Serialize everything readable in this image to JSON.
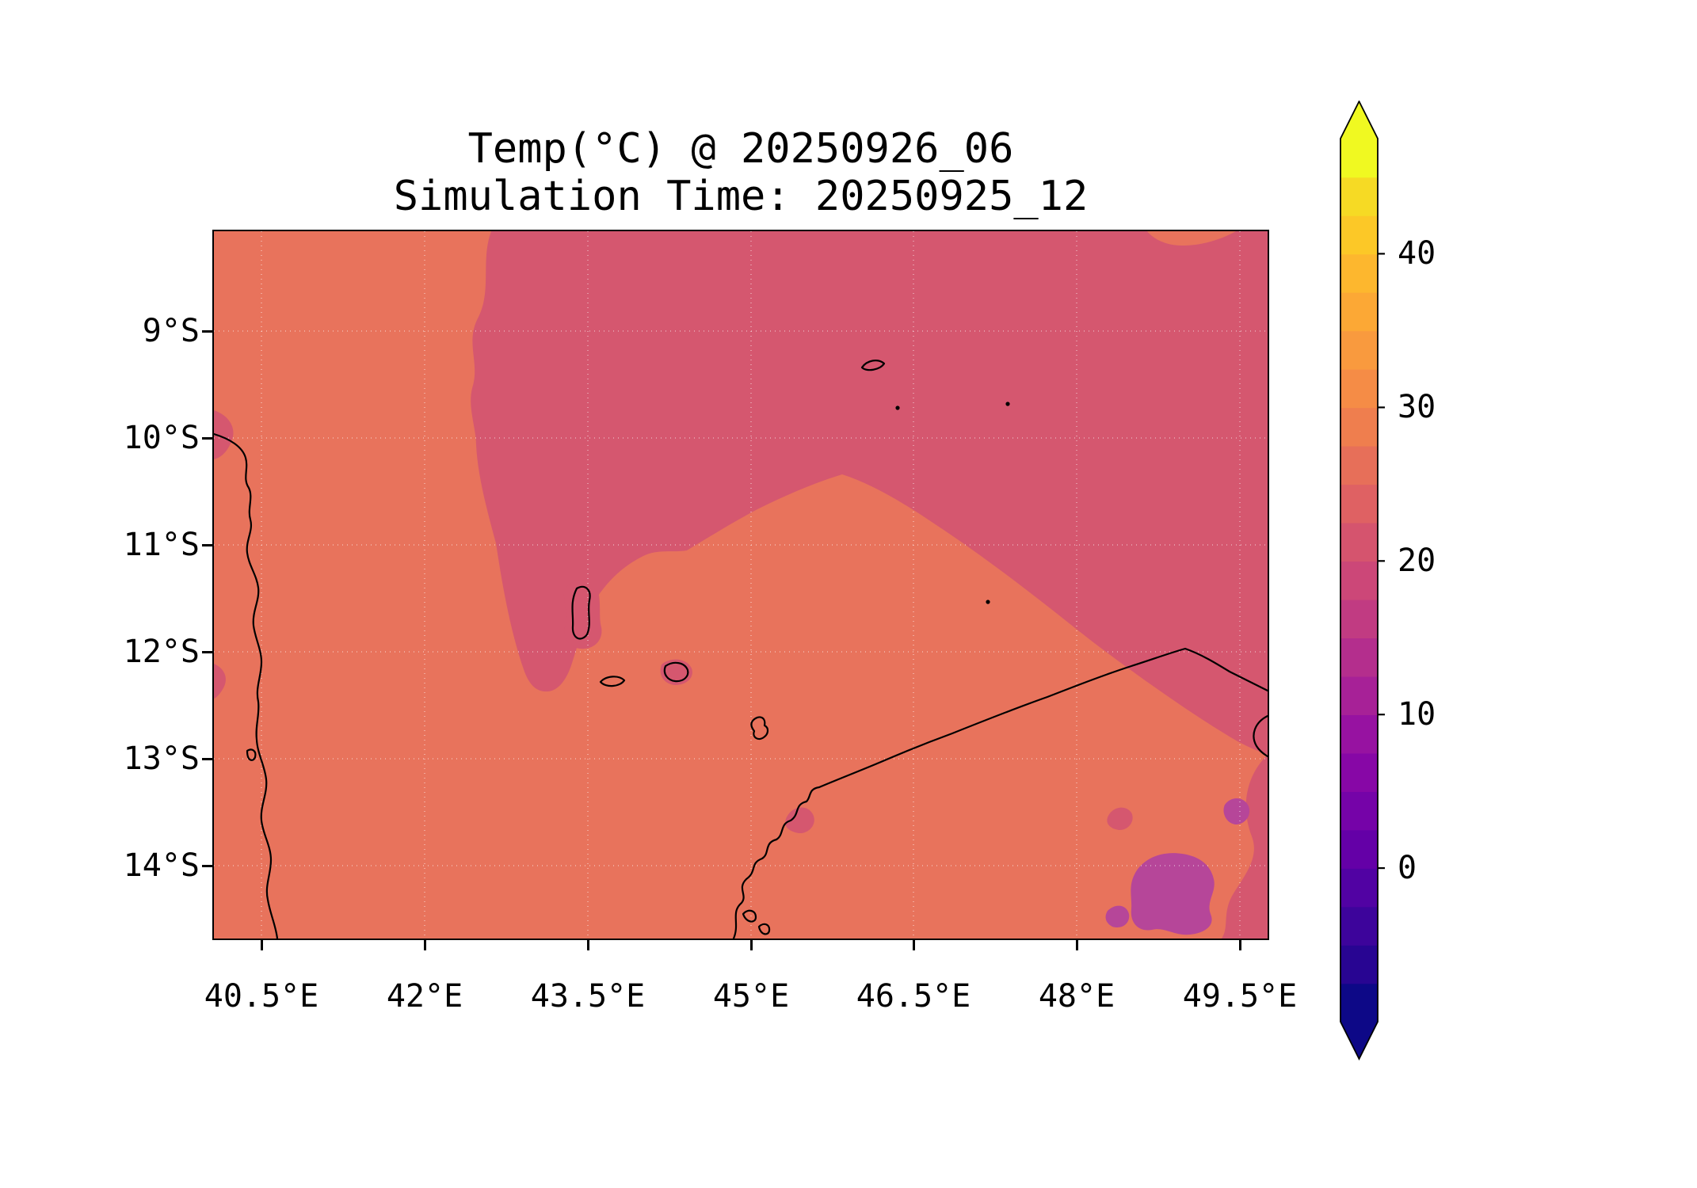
{
  "figure": {
    "title": "Temp(°C) @ 20250926_06",
    "subtitle": "Simulation Time: 20250925_12"
  },
  "axes": {
    "x_tick_labels": [
      "40.5°E",
      "42°E",
      "43.5°E",
      "45°E",
      "46.5°E",
      "48°E",
      "49.5°E"
    ],
    "y_tick_labels": [
      "9°S",
      "10°S",
      "11°S",
      "12°S",
      "13°S",
      "14°S"
    ]
  },
  "colorbar_labels": {
    "tick_labels_top_to_bottom": [
      "40",
      "30",
      "20",
      "10",
      "0"
    ]
  },
  "chart_data": {
    "type": "heatmap",
    "subtype": "filled-contour-map",
    "title": "Temp(°C) @ 20250926_06",
    "subtitle": "Simulation Time: 20250925_12",
    "variable": "Temperature",
    "units": "°C",
    "valid_time": "20250926_06",
    "simulation_time": "20250925_12",
    "x_ticks_deg_east": [
      40.5,
      42,
      43.5,
      45,
      46.5,
      48,
      49.5
    ],
    "y_ticks_deg_south": [
      9,
      10,
      11,
      12,
      13,
      14
    ],
    "lon_range_deg_east": [
      40.06,
      49.76
    ],
    "lat_range_deg_south": [
      8.07,
      14.68
    ],
    "graticule": "faint white dotted gridlines at each tick",
    "colors": {
      "sea_warm": "#e8735c",
      "cool": "#d5576f",
      "highland": "#b64699",
      "coastline": "#000000"
    },
    "regions": [
      {
        "name": "background-warm",
        "temp_c_band": [
          25,
          27.5
        ],
        "color_key": "sea_warm",
        "coverage": "most of the domain: Mozambique Channel, African coast, western and southern sea"
      },
      {
        "name": "northeast-cool-sector",
        "temp_c_band": [
          22.5,
          25
        ],
        "color_key": "cool",
        "coverage": "large region over the NE quadrant from ~44.5°E at the top edge to the right edge, with a lobe extending SW to ~43°E/12.3°S near the Comoros; also NE tip of Madagascar, small patches on the west edge near 10°S and 12.2°S, and rings around Comoro island peaks"
      },
      {
        "name": "madagascar-highland-patches",
        "temp_c_band": [
          15,
          20
        ],
        "color_key": "highland",
        "coverage": "purple patches over NE Madagascar interior near 48.5–49.6°E, 13.3–14.5°S"
      }
    ],
    "coastlines": [
      "africa-east-coast",
      "comoros-islands (Grande Comore, Mohéli, Anjouan, Mayotte)",
      "glorioso-islets",
      "madagascar-north-coast"
    ],
    "colorbar": {
      "orientation": "vertical",
      "ticks": [
        0,
        10,
        20,
        30,
        40
      ],
      "level_step": 2.5,
      "level_range": [
        -10,
        47.5
      ],
      "extend": "both",
      "under_color": "#0d0887",
      "over_color": "#f0f921",
      "colors": [
        "#0d0887",
        "#280592",
        "#3d049b",
        "#5102a3",
        "#6400a7",
        "#7503a8",
        "#8707a6",
        "#9712a1",
        "#a72197",
        "#b42e8d",
        "#c13b82",
        "#cc4778",
        "#d5546e",
        "#df6163",
        "#e76f59",
        "#ef7e4e",
        "#f58c46",
        "#f99a3e",
        "#fca835",
        "#fdb72e",
        "#fcc827",
        "#f6da24",
        "#f0f921"
      ]
    }
  }
}
